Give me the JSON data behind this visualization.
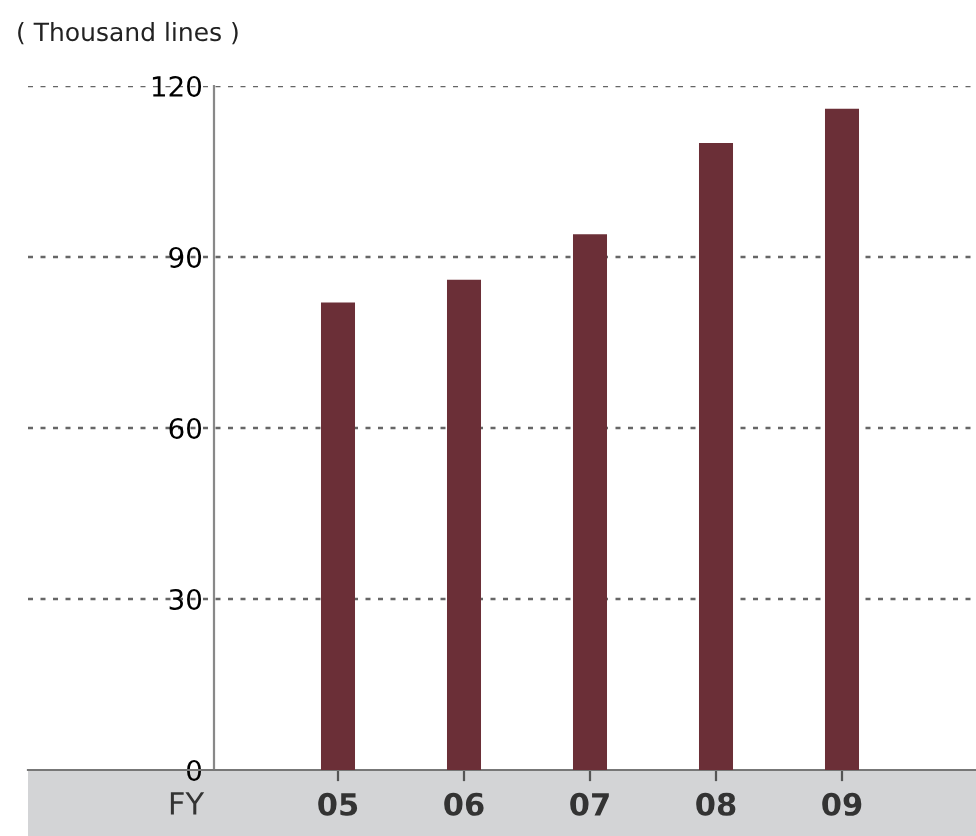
{
  "chart_data": {
    "type": "bar",
    "ylabel": "( Thousand lines )",
    "xlabel": "FY",
    "categories": [
      "05",
      "06",
      "07",
      "08",
      "09"
    ],
    "values": [
      82,
      86,
      94,
      110,
      116
    ],
    "color": "#6b2f37",
    "ylim": [
      0,
      120
    ],
    "yticks": [
      0,
      30,
      60,
      90,
      120
    ],
    "grid": "y",
    "legend": false
  }
}
